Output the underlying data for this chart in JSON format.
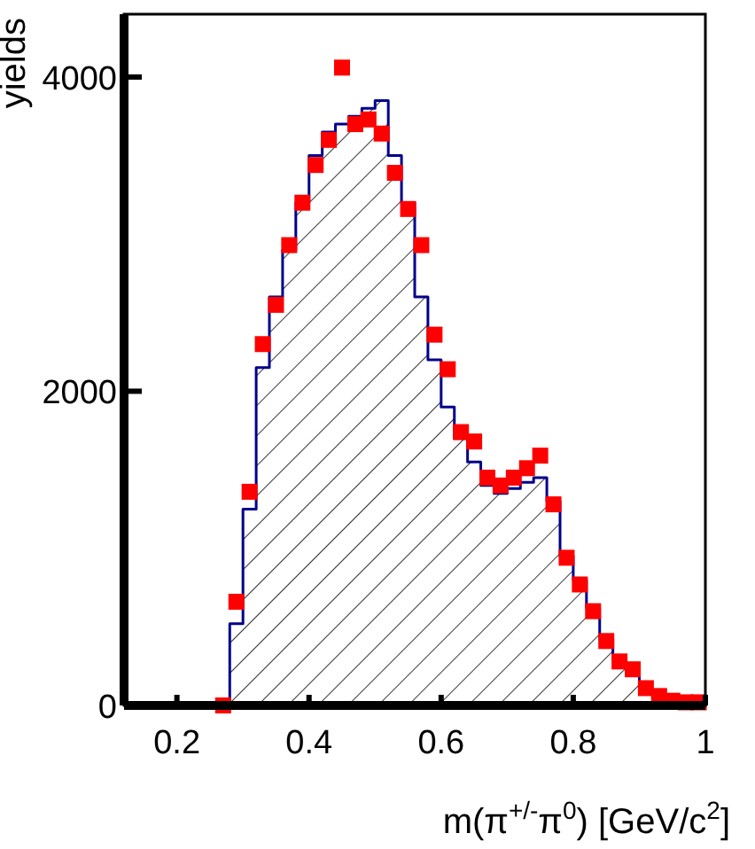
{
  "chart_data": {
    "type": "histogram",
    "xlabel": "m(π$^{+/-}$π$^{0}$) [GeV/c$^{2}$]",
    "ylabel": "yields",
    "xlim": [
      0.12,
      1.0
    ],
    "xticks": [
      0.2,
      0.4,
      0.6,
      0.8,
      1
    ],
    "ylim": [
      0,
      4400
    ],
    "yticks": [
      0,
      2000,
      4000
    ],
    "grid": false,
    "series": [
      {
        "color": "#00008b",
        "bins": [
          0.26,
          0.28,
          0.3,
          0.32,
          0.34,
          0.36,
          0.38,
          0.4,
          0.42,
          0.44,
          0.46,
          0.48,
          0.5,
          0.52,
          0.54,
          0.56,
          0.58,
          0.6,
          0.62,
          0.64,
          0.66,
          0.68,
          0.7,
          0.72,
          0.74,
          0.76,
          0.78,
          0.8,
          0.82,
          0.84,
          0.86,
          0.88,
          0.9,
          0.92,
          0.94,
          0.96,
          0.98,
          1.0
        ],
        "values": [
          0,
          520,
          1250,
          2150,
          2600,
          2900,
          3200,
          3500,
          3650,
          3700,
          3750,
          3800,
          3850,
          3500,
          3200,
          2600,
          2200,
          1900,
          1700,
          1550,
          1400,
          1350,
          1380,
          1420,
          1450,
          1300,
          950,
          800,
          620,
          420,
          300,
          200,
          80,
          40,
          20,
          10,
          10
        ]
      },
      {
        "type": "scatter",
        "color": "#ff0000",
        "marker": "square",
        "x": [
          0.27,
          0.29,
          0.31,
          0.33,
          0.35,
          0.37,
          0.39,
          0.41,
          0.43,
          0.45,
          0.47,
          0.49,
          0.51,
          0.53,
          0.55,
          0.57,
          0.59,
          0.61,
          0.63,
          0.65,
          0.67,
          0.69,
          0.71,
          0.73,
          0.75,
          0.77,
          0.79,
          0.81,
          0.83,
          0.85,
          0.87,
          0.89,
          0.91,
          0.93,
          0.95,
          0.97,
          0.99
        ],
        "values": [
          0,
          660,
          1360,
          2300,
          2550,
          2930,
          3200,
          3440,
          3600,
          4060,
          3700,
          3730,
          3640,
          3390,
          3160,
          2930,
          2360,
          2140,
          1740,
          1680,
          1450,
          1400,
          1450,
          1510,
          1590,
          1280,
          940,
          770,
          600,
          410,
          280,
          230,
          110,
          60,
          30,
          20,
          20
        ]
      }
    ]
  }
}
